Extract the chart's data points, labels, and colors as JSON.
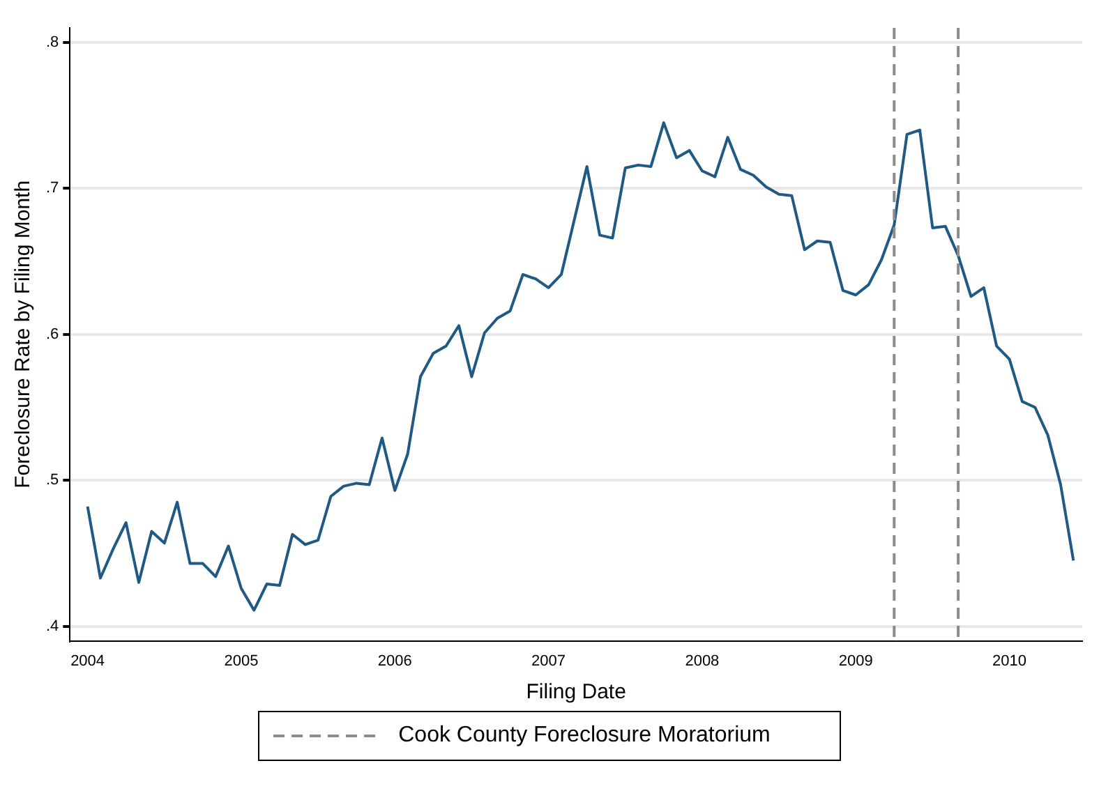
{
  "chart_data": {
    "type": "line",
    "xlabel": "Filing Date",
    "ylabel": "Foreclosure Rate by Filing Month",
    "x": [
      "2004-01",
      "2004-02",
      "2004-03",
      "2004-04",
      "2004-05",
      "2004-06",
      "2004-07",
      "2004-08",
      "2004-09",
      "2004-10",
      "2004-11",
      "2004-12",
      "2005-01",
      "2005-02",
      "2005-03",
      "2005-04",
      "2005-05",
      "2005-06",
      "2005-07",
      "2005-08",
      "2005-09",
      "2005-10",
      "2005-11",
      "2005-12",
      "2006-01",
      "2006-02",
      "2006-03",
      "2006-04",
      "2006-05",
      "2006-06",
      "2006-07",
      "2006-08",
      "2006-09",
      "2006-10",
      "2006-11",
      "2006-12",
      "2007-01",
      "2007-02",
      "2007-03",
      "2007-04",
      "2007-05",
      "2007-06",
      "2007-07",
      "2007-08",
      "2007-09",
      "2007-10",
      "2007-11",
      "2007-12",
      "2008-01",
      "2008-02",
      "2008-03",
      "2008-04",
      "2008-05",
      "2008-06",
      "2008-07",
      "2008-08",
      "2008-09",
      "2008-10",
      "2008-11",
      "2008-12",
      "2009-01",
      "2009-02",
      "2009-03",
      "2009-04",
      "2009-05",
      "2009-06",
      "2009-07",
      "2009-08",
      "2009-09",
      "2009-10",
      "2009-11",
      "2009-12",
      "2010-01",
      "2010-02",
      "2010-03",
      "2010-04",
      "2010-05",
      "2010-06"
    ],
    "series": [
      {
        "color": "#1f5a85",
        "values": [
          0.482,
          0.433,
          0.453,
          0.471,
          0.43,
          0.465,
          0.457,
          0.485,
          0.443,
          0.443,
          0.434,
          0.455,
          0.426,
          0.411,
          0.429,
          0.428,
          0.463,
          0.456,
          0.459,
          0.489,
          0.496,
          0.498,
          0.497,
          0.529,
          0.493,
          0.518,
          0.571,
          0.587,
          0.592,
          0.606,
          0.571,
          0.601,
          0.611,
          0.616,
          0.641,
          0.638,
          0.632,
          0.641,
          0.678,
          0.715,
          0.668,
          0.666,
          0.714,
          0.716,
          0.715,
          0.745,
          0.721,
          0.726,
          0.712,
          0.708,
          0.735,
          0.713,
          0.709,
          0.701,
          0.696,
          0.695,
          0.658,
          0.664,
          0.663,
          0.63,
          0.627,
          0.634,
          0.651,
          0.675,
          0.737,
          0.74,
          0.673,
          0.674,
          0.654,
          0.626,
          0.632,
          0.592,
          0.583,
          0.554,
          0.55,
          0.531,
          0.497,
          0.445
        ]
      }
    ],
    "xlim": [
      "2003-11-20",
      "2010-06-22"
    ],
    "xticks": [
      "2004",
      "2005",
      "2006",
      "2007",
      "2008",
      "2009",
      "2010"
    ],
    "ylim": [
      0.39,
      0.81
    ],
    "yticks": [
      {
        "value": 0.4,
        "label": ".4"
      },
      {
        "value": 0.5,
        "label": ".5"
      },
      {
        "value": 0.6,
        "label": ".6"
      },
      {
        "value": 0.7,
        "label": ".7"
      },
      {
        "value": 0.8,
        "label": ".8"
      }
    ],
    "ref_lines": [
      {
        "axis": "x",
        "value": "2009-04",
        "label": "Cook County Foreclosure Moratorium",
        "color": "#8c8c8c",
        "line_style": "dashed"
      },
      {
        "axis": "x",
        "value": "2009-09",
        "color": "#8c8c8c",
        "line_style": "dashed"
      }
    ],
    "grid": "y",
    "legend": "bottom",
    "marker": "none",
    "line_style": "solid"
  }
}
